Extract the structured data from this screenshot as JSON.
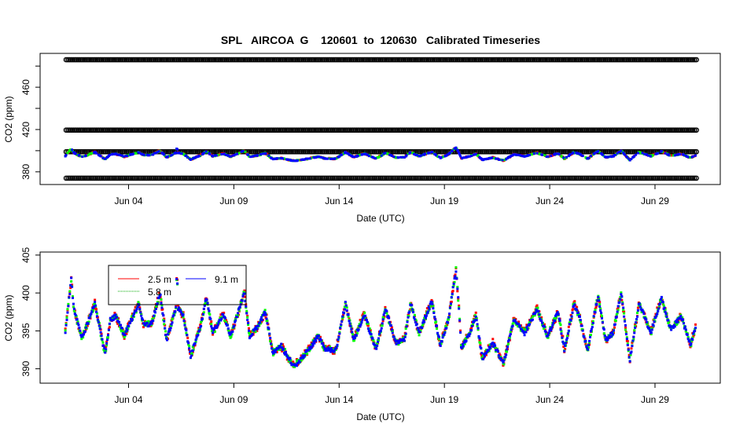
{
  "chart_data": [
    {
      "type": "scatter",
      "title": "SPL   AIRCOA  G    120601  to  120630   Calibrated Timeseries",
      "xlabel": "Date (UTC)",
      "ylabel": "CO2 (ppm)",
      "xlim_days_since_jun01": [
        -1.2,
        31.1
      ],
      "ylim": [
        368,
        492
      ],
      "x_ticks": [
        {
          "day": 3,
          "label": "Jun 04"
        },
        {
          "day": 8,
          "label": "Jun 09"
        },
        {
          "day": 13,
          "label": "Jun 14"
        },
        {
          "day": 18,
          "label": "Jun 19"
        },
        {
          "day": 23,
          "label": "Jun 24"
        },
        {
          "day": 28,
          "label": "Jun 29"
        }
      ],
      "y_ticks": [
        {
          "v": 380,
          "label": "380"
        },
        {
          "v": 400,
          "label": ""
        },
        {
          "v": 420,
          "label": "420"
        },
        {
          "v": 440,
          "label": ""
        },
        {
          "v": 460,
          "label": "460"
        },
        {
          "v": 480,
          "label": ""
        }
      ],
      "calibration_levels": [
        486,
        419.5,
        399,
        374
      ],
      "calibration_color": "#000000",
      "shows_ambient_series": true
    },
    {
      "type": "scatter",
      "title": "",
      "xlabel": "Date (UTC)",
      "ylabel": "CO2 (ppm)",
      "xlim_days_since_jun01": [
        -1.2,
        31.1
      ],
      "ylim": [
        388.1,
        405.4
      ],
      "x_ticks": [
        {
          "day": 3,
          "label": "Jun 04"
        },
        {
          "day": 8,
          "label": "Jun 09"
        },
        {
          "day": 13,
          "label": "Jun 14"
        },
        {
          "day": 18,
          "label": "Jun 19"
        },
        {
          "day": 23,
          "label": "Jun 24"
        },
        {
          "day": 28,
          "label": "Jun 29"
        }
      ],
      "y_ticks": [
        {
          "v": 390,
          "label": "390"
        },
        {
          "v": 395,
          "label": "395"
        },
        {
          "v": 400,
          "label": "400"
        },
        {
          "v": 405,
          "label": "405"
        }
      ],
      "legend": {
        "placement": "top-left",
        "entries": [
          {
            "label": "2.5 m",
            "color": "#ff0000"
          },
          {
            "label": "5.8 m",
            "color": "#00ff00"
          },
          {
            "label": "9.1 m",
            "color": "#0000ff"
          }
        ]
      },
      "series": [
        {
          "name": "2.5 m",
          "color": "#ff0000",
          "spread": 0.9,
          "offset": 0.3
        },
        {
          "name": "5.8 m",
          "color": "#00ff00",
          "spread": 0.7,
          "offset": 0.1
        },
        {
          "name": "9.1 m",
          "color": "#0000ff",
          "spread": 0.6,
          "offset": 0.0
        }
      ],
      "x_days": [
        0.0,
        0.28,
        0.4,
        0.77,
        1.0,
        1.4,
        1.77,
        1.9,
        2.14,
        2.4,
        2.8,
        3.14,
        3.5,
        3.7,
        4.1,
        4.5,
        4.8,
        5.25,
        5.3,
        5.35,
        5.6,
        5.95,
        6.4,
        6.7,
        7.0,
        7.5,
        7.85,
        8.5,
        8.75,
        9.1,
        9.5,
        9.85,
        10.25,
        10.85,
        11.1,
        11.6,
        12.0,
        12.3,
        12.85,
        13.3,
        13.7,
        14.2,
        14.75,
        15.2,
        15.7,
        16.1,
        16.4,
        16.8,
        17.4,
        17.8,
        18.2,
        18.55,
        18.7,
        18.8,
        19.2,
        19.5,
        19.8,
        20.3,
        20.8,
        21.3,
        21.8,
        22.4,
        22.9,
        23.4,
        23.7,
        24.15,
        24.4,
        24.8,
        25.3,
        25.65,
        26.0,
        26.4,
        26.8,
        27.25,
        27.8,
        28.3,
        28.75,
        29.25,
        29.7,
        29.95
      ],
      "y_ppm_9_1m": [
        395,
        401.7,
        398,
        394,
        395.5,
        398.6,
        393.4,
        392,
        396.5,
        396.9,
        394.4,
        396.5,
        398.6,
        395.9,
        395.9,
        400,
        393.8,
        397.9,
        403.5,
        398,
        397,
        391.7,
        395.4,
        399.3,
        394.7,
        397.2,
        394.3,
        400,
        394.3,
        395.4,
        397.5,
        392,
        393,
        390.3,
        391,
        392.7,
        394.3,
        392.7,
        392.4,
        398.6,
        393.8,
        397.2,
        392.4,
        397.9,
        393.4,
        393.8,
        398.6,
        394.7,
        398.9,
        393.1,
        396.5,
        403.1,
        397.5,
        392.7,
        394.7,
        397,
        391.3,
        393.4,
        390.6,
        396.5,
        394.7,
        397.9,
        394.3,
        397.5,
        392.4,
        398.6,
        396.9,
        392.4,
        399.7,
        393.8,
        394.7,
        400,
        391,
        398.6,
        394.7,
        399.3,
        395.2,
        396.9,
        393.1,
        395.9
      ]
    }
  ]
}
